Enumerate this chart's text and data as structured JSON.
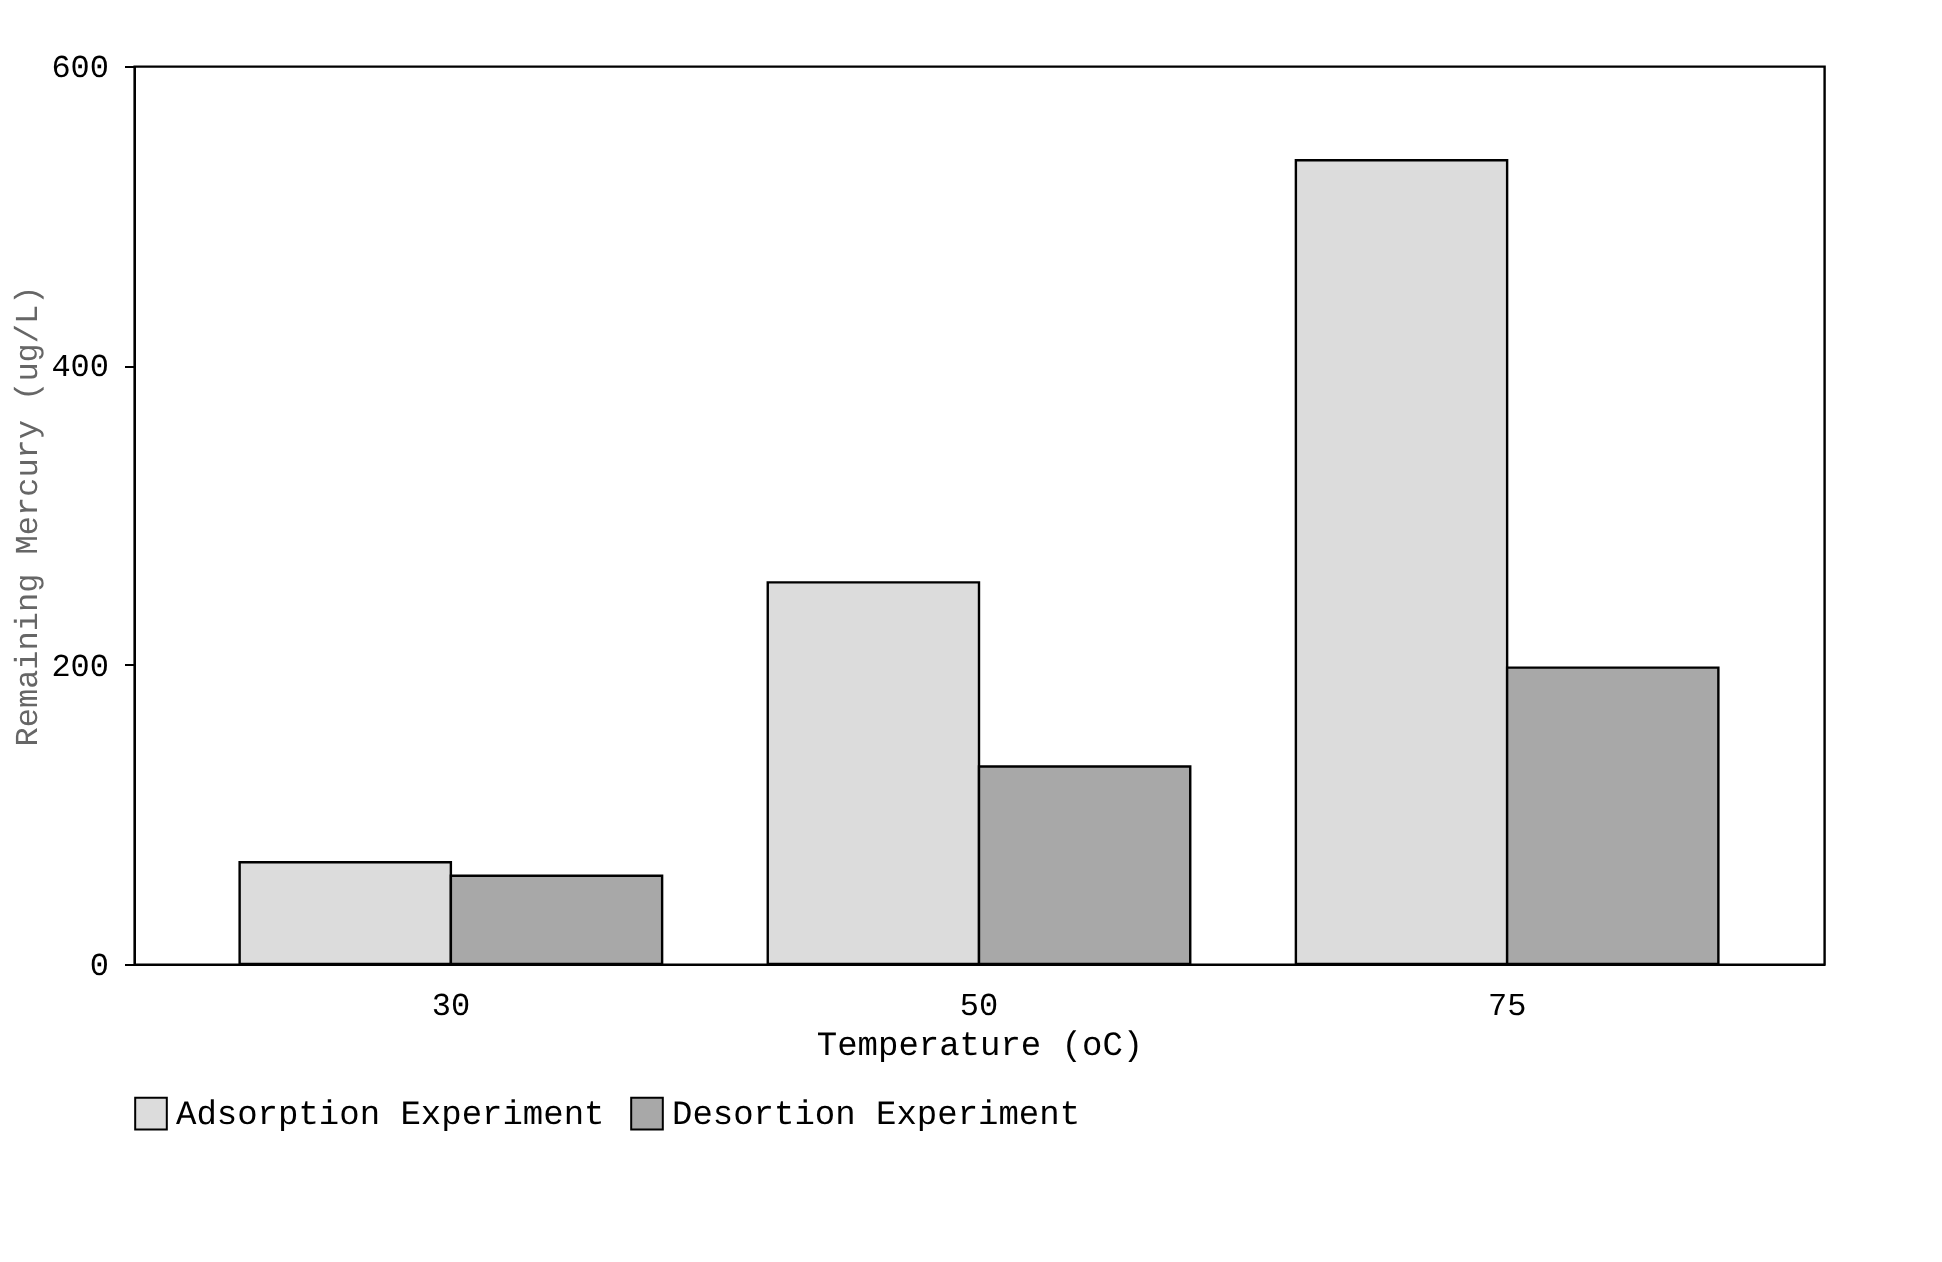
{
  "chart_data": {
    "type": "bar",
    "xlabel": "Temperature (oC)",
    "ylabel": "Remaining Mercury (ug/L)",
    "categories": [
      "30",
      "50",
      "75"
    ],
    "series": [
      {
        "name": "Adsorption Experiment",
        "color": "#dcdcdc",
        "values": [
          68,
          255,
          537
        ]
      },
      {
        "name": "Desortion Experiment",
        "color": "#a8a8a8",
        "values": [
          59,
          132,
          198
        ]
      }
    ],
    "ylim": [
      0,
      600
    ],
    "yticks": [
      0,
      200,
      400,
      600
    ],
    "grid": false,
    "legend": "bottom"
  }
}
